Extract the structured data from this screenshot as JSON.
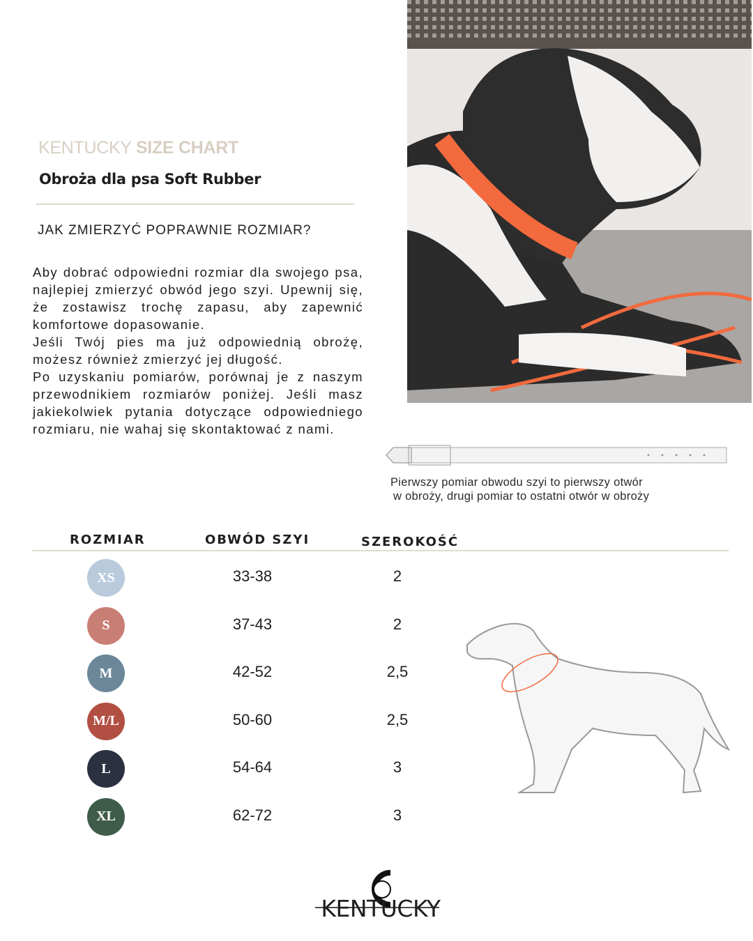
{
  "header": {
    "brand_light": "KENTUCKY",
    "brand_bold": "SIZE CHART",
    "product": "Obroża dla psa Soft Rubber"
  },
  "howto": {
    "title": "JAK ZMIERZYĆ POPRAWNIE ROZMIAR?",
    "paragraphs": [
      "Aby dobrać odpowiedni rozmiar dla swojego psa, najlepiej zmierzyć obwód jego szyi. Upewnij się, że zostawisz trochę zapasu, aby zapewnić komfortowe dopasowanie.",
      "Jeśli Twój pies ma już odpowiednią obrożę, możesz również zmierzyć jej długość.",
      "Po uzyskaniu pomiarów, porównaj je z naszym przewodnikiem rozmiarów poniżej. Jeśli masz jakiekolwiek pytania dotyczące odpowiedniego rozmiaru, nie wahaj się skontaktować z nami."
    ]
  },
  "collar_note": {
    "line1": "Pierwszy pomiar obwodu szyi to pierwszy otwór",
    "line2": "w obroży, drugi pomiar to ostatni otwór w obroży"
  },
  "table": {
    "headers": [
      "ROZMIAR",
      "OBWÓD SZYI",
      "SZEROKOŚĆ"
    ],
    "rows": [
      {
        "size": "XS",
        "neck": "33-38",
        "width": "2",
        "color": "#b8cadb"
      },
      {
        "size": "S",
        "neck": "37-43",
        "width": "2",
        "color": "#c97e75"
      },
      {
        "size": "M",
        "neck": "42-52",
        "width": "2,5",
        "color": "#6b8799"
      },
      {
        "size": "M/L",
        "neck": "50-60",
        "width": "2,5",
        "color": "#b14f43"
      },
      {
        "size": "L",
        "neck": "54-64",
        "width": "3",
        "color": "#2b3140"
      },
      {
        "size": "XL",
        "neck": "62-72",
        "width": "3",
        "color": "#3f5c4b"
      }
    ]
  },
  "logo": {
    "text": "KENTUCKY"
  },
  "colors": {
    "collar_orange": "#f26a3d",
    "rule": "#ddd6cc",
    "brand": "#d8cfc3"
  }
}
